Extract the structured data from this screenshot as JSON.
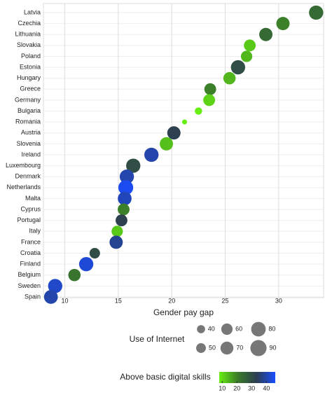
{
  "chart_data": {
    "type": "bubble",
    "x_label": "Gender pay gap",
    "categories": [
      "Latvia",
      "Czechia",
      "Lithuania",
      "Slovakia",
      "Poland",
      "Estonia",
      "Hungary",
      "Greece",
      "Germany",
      "Bulgaria",
      "Romania",
      "Austria",
      "Slovenia",
      "Ireland",
      "Luxembourg",
      "Denmark",
      "Netherlands",
      "Malta",
      "Cyprus",
      "Portugal",
      "Italy",
      "France",
      "Croatia",
      "Finland",
      "Belgium",
      "Sweden",
      "Spain"
    ],
    "x": [
      33.5,
      30.4,
      28.8,
      27.3,
      27.0,
      26.2,
      25.4,
      23.6,
      23.5,
      22.5,
      21.2,
      20.2,
      19.5,
      18.1,
      16.4,
      15.8,
      15.7,
      15.6,
      15.5,
      15.3,
      14.9,
      14.8,
      12.8,
      12.0,
      10.9,
      9.1,
      8.7
    ],
    "size": [
      78,
      72,
      72,
      63,
      60,
      78,
      66,
      63,
      63,
      35,
      20,
      72,
      72,
      78,
      78,
      78,
      82,
      75,
      63,
      63,
      60,
      72,
      55,
      78,
      66,
      78,
      75
    ],
    "color_values": [
      24,
      20,
      24,
      12,
      14,
      30,
      14,
      20,
      11,
      8,
      8,
      33,
      13,
      40,
      30,
      40,
      45,
      41,
      20,
      33,
      12,
      38,
      30,
      43,
      22,
      42,
      40
    ],
    "xlim": [
      8,
      34.2
    ],
    "xticks": [
      10,
      15,
      20,
      25,
      30
    ],
    "grid": true,
    "size_legend": {
      "title": "Use of Internet",
      "values": [
        40,
        50,
        60,
        70,
        80,
        90
      ]
    },
    "color_legend": {
      "title": "Above basic digital skills",
      "range": [
        8,
        46
      ],
      "ticks": [
        10,
        20,
        30,
        40
      ],
      "colors": [
        "#66ee11",
        "#3a7a2a",
        "#2c3e50",
        "#1a4cff"
      ]
    }
  }
}
